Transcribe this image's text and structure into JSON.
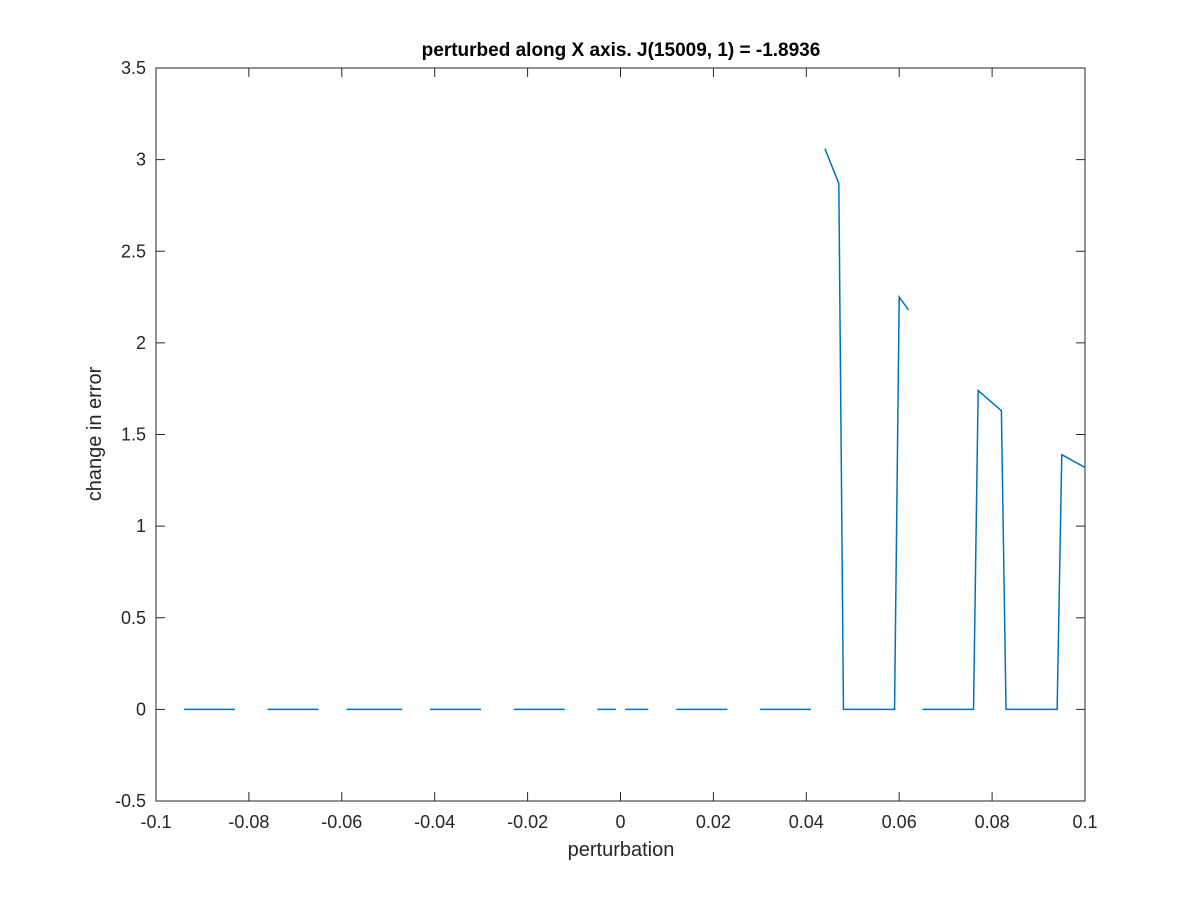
{
  "chart_data": {
    "type": "line",
    "title": "perturbed along X axis. J(15009, 1) = -1.8936",
    "xlabel": "perturbation",
    "ylabel": "change in error",
    "xlim": [
      -0.1,
      0.1
    ],
    "ylim": [
      -0.5,
      3.5
    ],
    "xticks": [
      -0.1,
      -0.08,
      -0.06,
      -0.04,
      -0.02,
      0,
      0.02,
      0.04,
      0.06,
      0.08,
      0.1
    ],
    "xtick_labels": [
      "-0.1",
      "-0.08",
      "-0.06",
      "-0.04",
      "-0.02",
      "0",
      "0.02",
      "0.04",
      "0.06",
      "0.08",
      "0.1"
    ],
    "yticks": [
      -0.5,
      0,
      0.5,
      1,
      1.5,
      2,
      2.5,
      3,
      3.5
    ],
    "ytick_labels": [
      "-0.5",
      "0",
      "0.5",
      "1",
      "1.5",
      "2",
      "2.5",
      "3",
      "3.5"
    ],
    "grid": false,
    "legend": "none",
    "series_color": "#0072BD",
    "series": [
      {
        "segments": [
          [
            [
              -0.094,
              0
            ],
            [
              -0.083,
              0
            ]
          ],
          [
            [
              -0.076,
              0
            ],
            [
              -0.065,
              0
            ]
          ],
          [
            [
              -0.059,
              0
            ],
            [
              -0.047,
              0
            ]
          ],
          [
            [
              -0.041,
              0
            ],
            [
              -0.03,
              0
            ]
          ],
          [
            [
              -0.023,
              0
            ],
            [
              -0.012,
              0
            ]
          ],
          [
            [
              -0.005,
              0
            ],
            [
              -0.001,
              0
            ]
          ],
          [
            [
              0.001,
              0
            ],
            [
              0.006,
              0
            ]
          ],
          [
            [
              0.012,
              0
            ],
            [
              0.023,
              0
            ]
          ],
          [
            [
              0.03,
              0
            ],
            [
              0.041,
              0
            ]
          ],
          [
            [
              0.044,
              3.06
            ],
            [
              0.047,
              2.87
            ],
            [
              0.048,
              0
            ],
            [
              0.059,
              0
            ],
            [
              0.06,
              2.25
            ],
            [
              0.062,
              2.18
            ]
          ],
          [
            [
              0.065,
              0
            ],
            [
              0.076,
              0
            ],
            [
              0.077,
              1.74
            ],
            [
              0.082,
              1.63
            ],
            [
              0.083,
              0
            ],
            [
              0.094,
              0
            ],
            [
              0.095,
              1.39
            ],
            [
              0.1,
              1.32
            ]
          ]
        ]
      }
    ]
  }
}
